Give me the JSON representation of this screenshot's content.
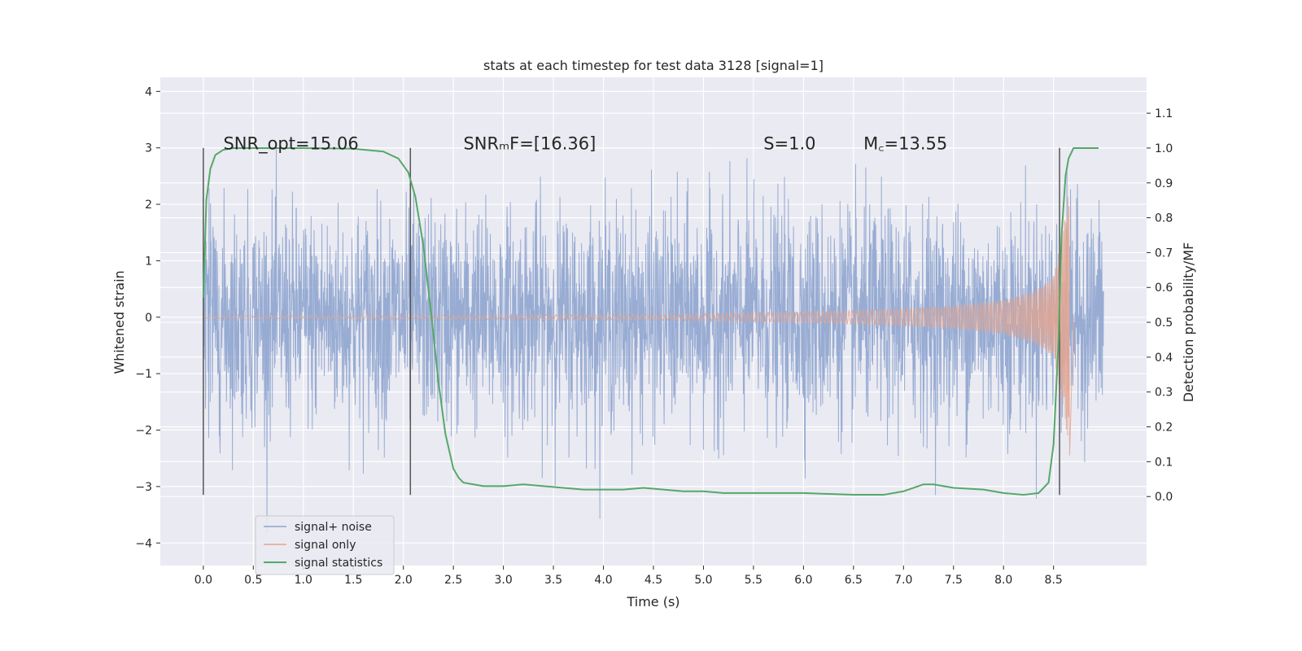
{
  "chart_data": {
    "type": "line",
    "title": "stats at each timestep for test data 3128 [signal=1]",
    "xlabel": "Time (s)",
    "ylabel_left": "Whitened strain",
    "ylabel_right": "Detection probability/MF",
    "xlim": [
      -0.43,
      9.43
    ],
    "ylim_left": [
      -4.4,
      4.25
    ],
    "ylim_right": [
      -0.198,
      1.203
    ],
    "xticks": [
      "0.0",
      "0.5",
      "1.0",
      "1.5",
      "2.0",
      "2.5",
      "3.0",
      "3.5",
      "4.0",
      "4.5",
      "5.0",
      "5.5",
      "6.0",
      "6.5",
      "7.0",
      "7.5",
      "8.0",
      "8.5"
    ],
    "yticks_left": [
      "−4",
      "−3",
      "−2",
      "−1",
      "0",
      "1",
      "2",
      "3",
      "4"
    ],
    "yticks_right": [
      "0.0",
      "0.1",
      "0.2",
      "0.3",
      "0.4",
      "0.5",
      "0.6",
      "0.7",
      "0.8",
      "0.9",
      "1.0",
      "1.1"
    ],
    "grid": true,
    "legend_position": "lower-left",
    "annotations": [
      {
        "text": "SNR_opt=15.06",
        "x": 0.2,
        "y": 3.0
      },
      {
        "text": "SNRₘF=[16.36]",
        "x": 2.6,
        "y": 3.0
      },
      {
        "text": "S=1.0",
        "x": 5.6,
        "y": 3.0
      },
      {
        "text": "M꜀=13.55",
        "x": 6.6,
        "y": 3.0
      }
    ],
    "vlines": [
      {
        "x": 0.0,
        "ymin": -3.15,
        "ymax": 3.0
      },
      {
        "x": 2.07,
        "ymin": -3.15,
        "ymax": 3.0
      },
      {
        "x": 8.56,
        "ymin": -3.15,
        "ymax": 3.0
      }
    ],
    "series": [
      {
        "name": "signal+ noise",
        "color": "#8fa5cf",
        "x_range": [
          0.0,
          9.0
        ],
        "typical_amplitude": 1.6,
        "max": 3.9,
        "min": -4.0
      },
      {
        "name": "signal only",
        "color": "#e3a58f",
        "x_range": [
          0.0,
          8.7
        ],
        "chirp_envelope": {
          "x": [
            0.0,
            4.5,
            5.5,
            6.5,
            7.0,
            7.5,
            8.0,
            8.3,
            8.5,
            8.6,
            8.65,
            8.7
          ],
          "amp": [
            0.02,
            0.05,
            0.08,
            0.12,
            0.15,
            0.2,
            0.3,
            0.45,
            0.7,
            1.6,
            2.3,
            0.0
          ]
        }
      },
      {
        "name": "signal statistics",
        "color": "#55a868",
        "axis": "right",
        "x": [
          0.0,
          0.03,
          0.07,
          0.12,
          0.2,
          0.3,
          0.5,
          1.0,
          1.5,
          1.8,
          1.95,
          2.05,
          2.12,
          2.2,
          2.28,
          2.35,
          2.42,
          2.5,
          2.55,
          2.6,
          2.7,
          2.8,
          2.9,
          3.0,
          3.2,
          3.4,
          3.6,
          3.8,
          4.0,
          4.2,
          4.4,
          4.6,
          4.8,
          5.0,
          5.2,
          5.5,
          6.0,
          6.5,
          6.8,
          7.0,
          7.2,
          7.3,
          7.5,
          7.8,
          8.0,
          8.2,
          8.35,
          8.45,
          8.5,
          8.55,
          8.58,
          8.62,
          8.65,
          8.7,
          8.8,
          8.95
        ],
        "y": [
          0.57,
          0.85,
          0.94,
          0.98,
          0.995,
          1.0,
          1.0,
          1.0,
          0.998,
          0.99,
          0.97,
          0.93,
          0.86,
          0.72,
          0.52,
          0.33,
          0.18,
          0.08,
          0.055,
          0.04,
          0.035,
          0.03,
          0.03,
          0.03,
          0.035,
          0.03,
          0.025,
          0.02,
          0.02,
          0.02,
          0.025,
          0.02,
          0.015,
          0.015,
          0.01,
          0.01,
          0.01,
          0.005,
          0.005,
          0.015,
          0.035,
          0.035,
          0.025,
          0.02,
          0.01,
          0.005,
          0.01,
          0.04,
          0.15,
          0.45,
          0.75,
          0.92,
          0.97,
          1.0,
          1.0,
          1.0
        ]
      }
    ]
  }
}
